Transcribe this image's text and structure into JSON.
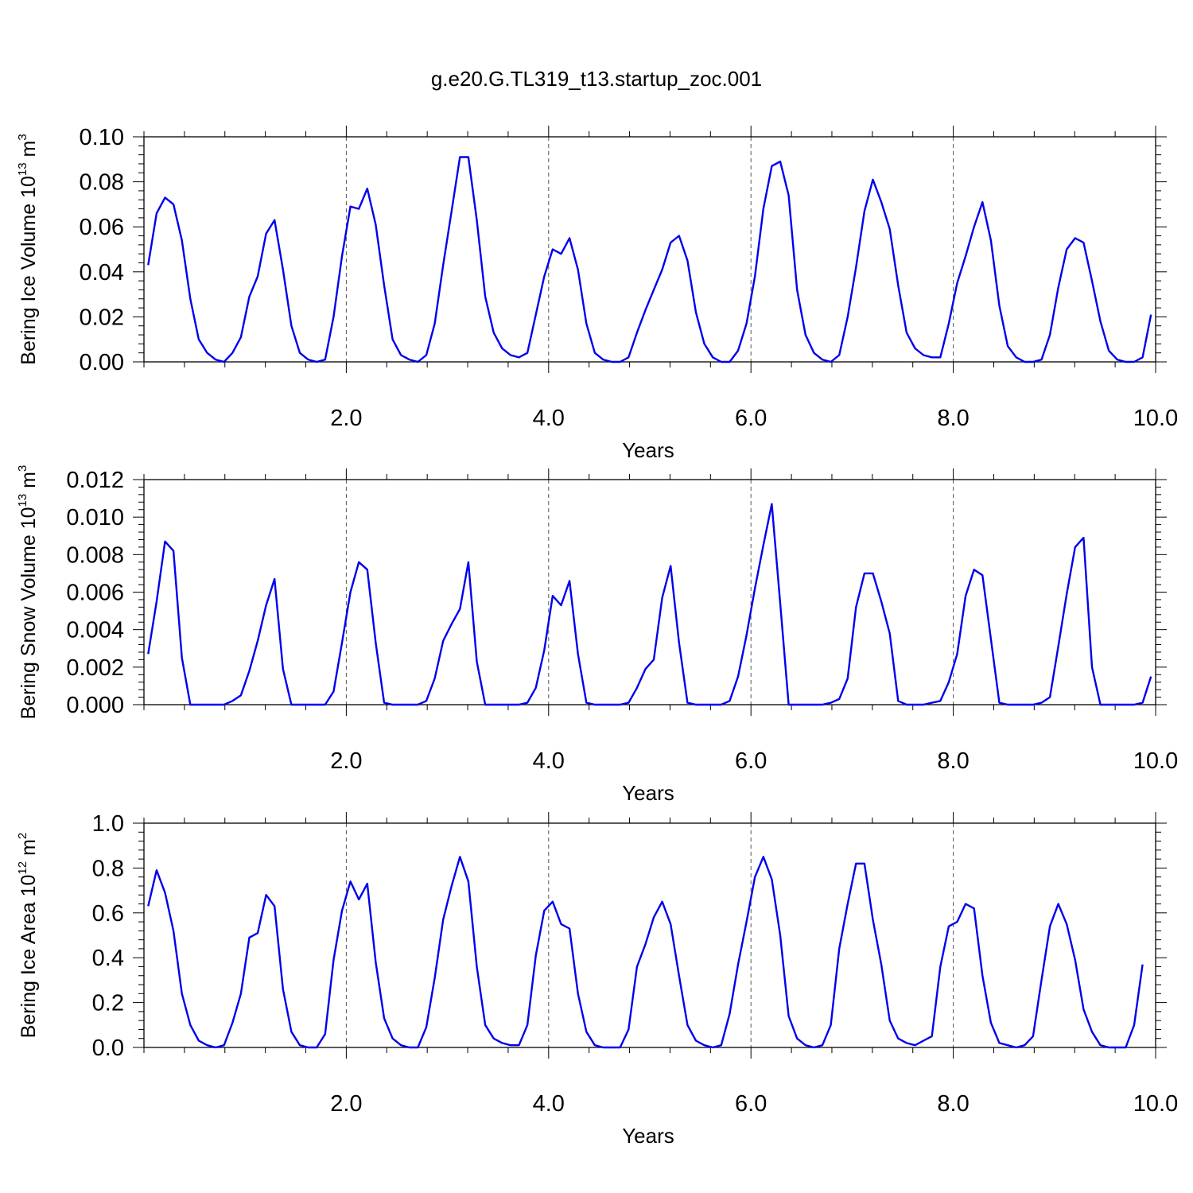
{
  "title": "g.e20.G.TL319_t13.startup_zoc.001",
  "colors": {
    "series": "#0000ee",
    "axes": "#000000",
    "grid": "#555555"
  },
  "chart_data": [
    {
      "type": "line",
      "xlabel": "Years",
      "ylabel": {
        "name": "Bering Ice Volume 10",
        "exp": "13",
        "unit": " m",
        "unit_exp": "3"
      },
      "xlim": [
        0.0,
        10.0
      ],
      "ylim": [
        0.0,
        0.1
      ],
      "xticks": [
        2.0,
        4.0,
        6.0,
        8.0,
        10.0
      ],
      "xtick_labels": [
        "2.0",
        "4.0",
        "6.0",
        "8.0",
        "10.0"
      ],
      "yticks": [
        0.0,
        0.02,
        0.04,
        0.06,
        0.08,
        0.1
      ],
      "ytick_labels": [
        "0.00",
        "0.02",
        "0.04",
        "0.06",
        "0.08",
        "0.10"
      ],
      "grid": "dashed vertical at 2.0, 4.0, 6.0, 8.0",
      "x_start": 0.0417,
      "x_step": 0.0833,
      "values": [
        0.043,
        0.066,
        0.073,
        0.07,
        0.054,
        0.028,
        0.01,
        0.004,
        0.001,
        0.0,
        0.004,
        0.011,
        0.029,
        0.038,
        0.057,
        0.063,
        0.041,
        0.016,
        0.004,
        0.001,
        0.0,
        0.001,
        0.02,
        0.047,
        0.069,
        0.068,
        0.077,
        0.061,
        0.034,
        0.01,
        0.003,
        0.001,
        0.0,
        0.003,
        0.017,
        0.043,
        0.067,
        0.091,
        0.091,
        0.063,
        0.029,
        0.013,
        0.006,
        0.003,
        0.002,
        0.004,
        0.021,
        0.038,
        0.05,
        0.048,
        0.055,
        0.041,
        0.017,
        0.004,
        0.001,
        0.0,
        0.0,
        0.002,
        0.013,
        0.023,
        0.032,
        0.041,
        0.053,
        0.056,
        0.045,
        0.022,
        0.008,
        0.002,
        0.0,
        0.0,
        0.005,
        0.017,
        0.038,
        0.068,
        0.087,
        0.089,
        0.074,
        0.032,
        0.012,
        0.004,
        0.001,
        0.0,
        0.003,
        0.02,
        0.042,
        0.067,
        0.081,
        0.071,
        0.059,
        0.034,
        0.013,
        0.006,
        0.003,
        0.002,
        0.002,
        0.017,
        0.035,
        0.047,
        0.06,
        0.071,
        0.054,
        0.025,
        0.007,
        0.002,
        0.0,
        0.0,
        0.001,
        0.012,
        0.033,
        0.05,
        0.055,
        0.053,
        0.036,
        0.018,
        0.005,
        0.001,
        0.0,
        0.0,
        0.002,
        0.021
      ]
    },
    {
      "type": "line",
      "xlabel": "Years",
      "ylabel": {
        "name": "Bering Snow Volume 10",
        "exp": "13",
        "unit": " m",
        "unit_exp": "3"
      },
      "xlim": [
        0.0,
        10.0
      ],
      "ylim": [
        0.0,
        0.012
      ],
      "xticks": [
        2.0,
        4.0,
        6.0,
        8.0,
        10.0
      ],
      "xtick_labels": [
        "2.0",
        "4.0",
        "6.0",
        "8.0",
        "10.0"
      ],
      "yticks": [
        0.0,
        0.002,
        0.004,
        0.006,
        0.008,
        0.01,
        0.012
      ],
      "ytick_labels": [
        "0.000",
        "0.002",
        "0.004",
        "0.006",
        "0.008",
        "0.010",
        "0.012"
      ],
      "grid": "dashed vertical at 2.0, 4.0, 6.0, 8.0",
      "x_start": 0.0417,
      "x_step": 0.0833,
      "values": [
        0.0027,
        0.0055,
        0.0087,
        0.0082,
        0.0025,
        0.0,
        0.0,
        0.0,
        0.0,
        0.0,
        0.0002,
        0.0005,
        0.0018,
        0.0034,
        0.0053,
        0.0067,
        0.0019,
        0.0,
        0.0,
        0.0,
        0.0,
        0.0,
        0.0007,
        0.0033,
        0.006,
        0.0076,
        0.0072,
        0.0033,
        0.0001,
        0.0,
        0.0,
        0.0,
        0.0,
        0.0002,
        0.0014,
        0.0034,
        0.0043,
        0.0051,
        0.0076,
        0.0023,
        0.0,
        0.0,
        0.0,
        0.0,
        0.0,
        0.0001,
        0.0009,
        0.0029,
        0.0058,
        0.0053,
        0.0066,
        0.0027,
        0.0001,
        0.0,
        0.0,
        0.0,
        0.0,
        0.0001,
        0.0009,
        0.0019,
        0.0024,
        0.0057,
        0.0074,
        0.0033,
        0.0001,
        0.0,
        0.0,
        0.0,
        0.0,
        0.0002,
        0.0015,
        0.0037,
        0.0062,
        0.0085,
        0.0107,
        0.0054,
        0.0,
        0.0,
        0.0,
        0.0,
        0.0,
        0.0001,
        0.0003,
        0.0014,
        0.0052,
        0.007,
        0.007,
        0.0055,
        0.0038,
        0.0002,
        0.0,
        0.0,
        0.0,
        0.0001,
        0.0002,
        0.0012,
        0.0027,
        0.0058,
        0.0072,
        0.0069,
        0.0035,
        0.0001,
        0.0,
        0.0,
        0.0,
        0.0,
        0.0001,
        0.0004,
        0.0031,
        0.0059,
        0.0084,
        0.0089,
        0.002,
        0.0,
        0.0,
        0.0,
        0.0,
        0.0,
        0.0001,
        0.0015
      ]
    },
    {
      "type": "line",
      "xlabel": "Years",
      "ylabel": {
        "name": "Bering Ice Area 10",
        "exp": "12",
        "unit": " m",
        "unit_exp": "2"
      },
      "xlim": [
        0.0,
        10.0
      ],
      "ylim": [
        0.0,
        1.0
      ],
      "xticks": [
        2.0,
        4.0,
        6.0,
        8.0,
        10.0
      ],
      "xtick_labels": [
        "2.0",
        "4.0",
        "6.0",
        "8.0",
        "10.0"
      ],
      "yticks": [
        0.0,
        0.2,
        0.4,
        0.6,
        0.8,
        1.0
      ],
      "ytick_labels": [
        "0.0",
        "0.2",
        "0.4",
        "0.6",
        "0.8",
        "1.0"
      ],
      "grid": "dashed vertical at 2.0, 4.0, 6.0, 8.0",
      "x_start": 0.0417,
      "x_step": 0.0833,
      "values": [
        0.63,
        0.79,
        0.69,
        0.52,
        0.24,
        0.1,
        0.03,
        0.01,
        0.0,
        0.01,
        0.11,
        0.24,
        0.49,
        0.51,
        0.68,
        0.63,
        0.26,
        0.07,
        0.01,
        0.0,
        0.0,
        0.06,
        0.39,
        0.61,
        0.74,
        0.66,
        0.73,
        0.38,
        0.13,
        0.04,
        0.01,
        0.0,
        0.0,
        0.09,
        0.31,
        0.57,
        0.72,
        0.85,
        0.74,
        0.36,
        0.1,
        0.04,
        0.02,
        0.01,
        0.01,
        0.1,
        0.41,
        0.61,
        0.65,
        0.55,
        0.53,
        0.24,
        0.07,
        0.01,
        0.0,
        0.0,
        0.0,
        0.08,
        0.36,
        0.46,
        0.58,
        0.65,
        0.55,
        0.32,
        0.1,
        0.03,
        0.01,
        0.0,
        0.01,
        0.15,
        0.37,
        0.56,
        0.76,
        0.85,
        0.75,
        0.5,
        0.14,
        0.04,
        0.01,
        0.0,
        0.01,
        0.1,
        0.44,
        0.64,
        0.82,
        0.82,
        0.57,
        0.37,
        0.12,
        0.04,
        0.02,
        0.01,
        0.03,
        0.05,
        0.36,
        0.54,
        0.56,
        0.64,
        0.62,
        0.32,
        0.11,
        0.02,
        0.01,
        0.0,
        0.01,
        0.05,
        0.3,
        0.54,
        0.64,
        0.55,
        0.39,
        0.17,
        0.07,
        0.01,
        0.0,
        0.0,
        0.0,
        0.1,
        0.37
      ]
    }
  ]
}
